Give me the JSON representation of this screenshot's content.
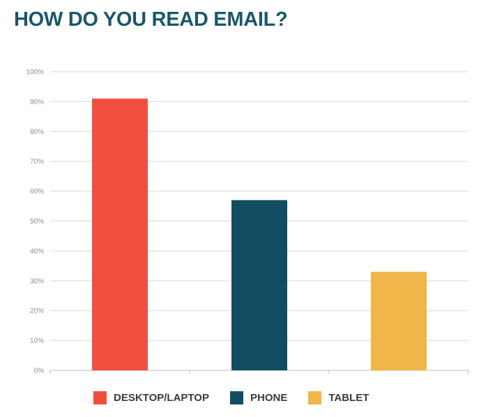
{
  "chart_data": {
    "type": "bar",
    "title": "HOW DO YOU READ EMAIL?",
    "categories": [
      "DESKTOP/LAPTOP",
      "PHONE",
      "TABLET"
    ],
    "values": [
      91,
      57,
      33
    ],
    "colors": [
      "#f04f3f",
      "#134d62",
      "#f2b54a"
    ],
    "ylim": [
      0,
      100
    ],
    "yticks": [
      "0%",
      "10%",
      "20%",
      "30%",
      "40%",
      "50%",
      "60%",
      "70%",
      "80%",
      "90%",
      "100%"
    ],
    "grid": true,
    "legend_position": "bottom"
  }
}
